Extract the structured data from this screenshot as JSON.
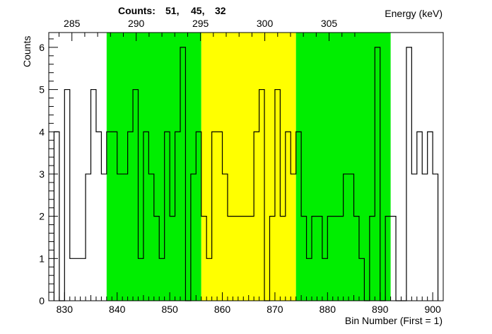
{
  "chart_data": {
    "type": "histogram",
    "header": {
      "counts_label": "Counts:",
      "counts": [
        "51,",
        "45,",
        "32"
      ]
    },
    "ylabel": "Counts",
    "xlabel_bottom": "Bin Number (First = 1)",
    "xlabel_top": "Energy (keV)",
    "xlim": [
      827,
      902
    ],
    "ylim": [
      0,
      6.35
    ],
    "bin_start": 828,
    "values": [
      4,
      0,
      5,
      1,
      1,
      1,
      3,
      5,
      4,
      3,
      4,
      4,
      3,
      3,
      4,
      5,
      1,
      4,
      3,
      2,
      1,
      4,
      2,
      4,
      6,
      0,
      3,
      4,
      2,
      1,
      4,
      4,
      3,
      2,
      2,
      2,
      2,
      2,
      4,
      5,
      0,
      2,
      5,
      2,
      4,
      3,
      4,
      2,
      1,
      2,
      2,
      1,
      2,
      2,
      2,
      3,
      3,
      2,
      1,
      0,
      2,
      6,
      0,
      2,
      2,
      0,
      0,
      6,
      3,
      4,
      3,
      4,
      3
    ],
    "bands": [
      {
        "from": 838,
        "to": 856,
        "color": "#00ee00"
      },
      {
        "from": 856,
        "to": 874,
        "color": "#ffff00"
      },
      {
        "from": 874,
        "to": 892,
        "color": "#00ee00"
      }
    ],
    "x_ticks": [
      {
        "value": 830,
        "label": "830"
      },
      {
        "value": 840,
        "label": "840"
      },
      {
        "value": 850,
        "label": "850"
      },
      {
        "value": 860,
        "label": "860"
      },
      {
        "value": 870,
        "label": "870"
      },
      {
        "value": 880,
        "label": "880"
      },
      {
        "value": 890,
        "label": "890"
      },
      {
        "value": 900,
        "label": "900"
      }
    ],
    "y_ticks": [
      {
        "value": 0,
        "label": "0"
      },
      {
        "value": 1,
        "label": "1"
      },
      {
        "value": 2,
        "label": "2"
      },
      {
        "value": 3,
        "label": "3"
      },
      {
        "value": 4,
        "label": "4"
      },
      {
        "value": 5,
        "label": "5"
      },
      {
        "value": 6,
        "label": "6"
      }
    ],
    "top_ticks": [
      {
        "value": 285,
        "label": "285"
      },
      {
        "value": 290,
        "label": "290"
      },
      {
        "value": 295,
        "label": "295"
      },
      {
        "value": 300,
        "label": "300"
      },
      {
        "value": 305,
        "label": "305"
      }
    ],
    "energy_calibration": {
      "bin_ref": 838,
      "energy_ref": 287.7,
      "kev_per_bin": 0.409
    }
  }
}
